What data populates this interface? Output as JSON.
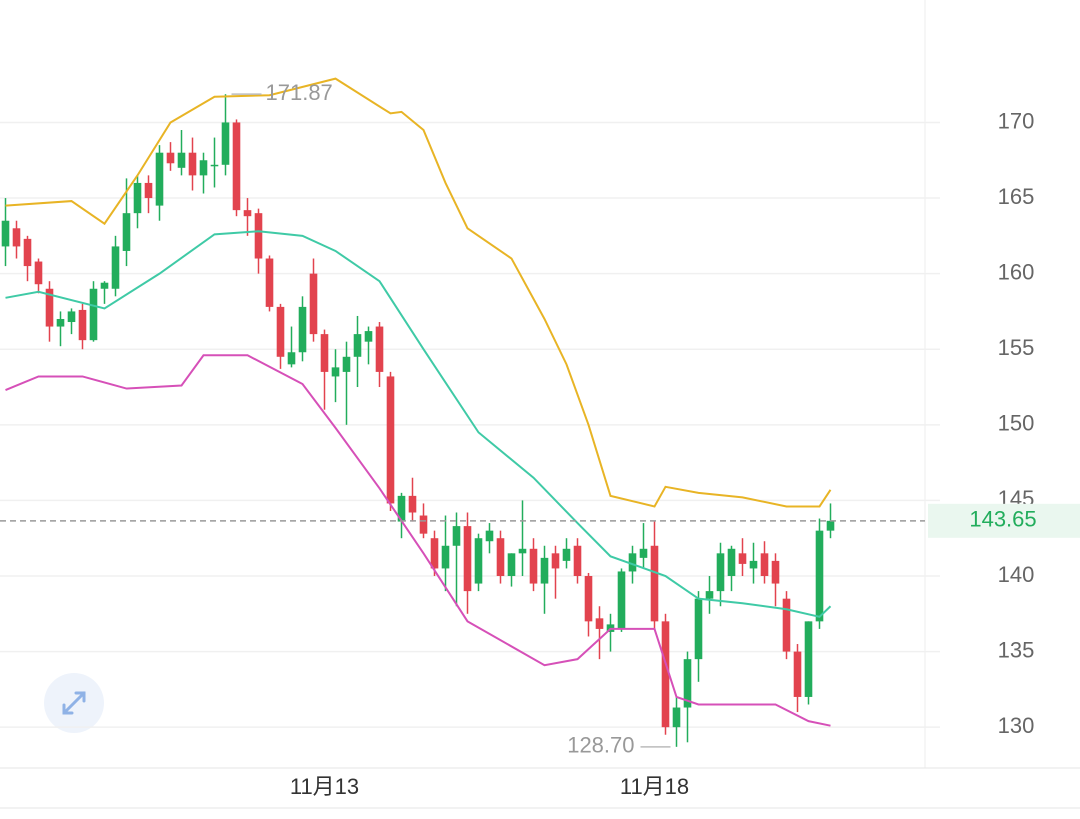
{
  "chart_data": {
    "type": "candlestick",
    "categories": [
      null,
      null,
      null,
      null,
      null,
      null,
      null,
      null,
      null,
      null,
      null,
      null,
      null,
      null,
      null,
      null,
      null,
      null,
      null,
      null,
      null,
      null,
      null,
      null,
      null,
      null,
      null,
      null,
      null,
      "11月13",
      null,
      null,
      null,
      null,
      null,
      null,
      null,
      null,
      null,
      null,
      null,
      null,
      null,
      null,
      null,
      null,
      null,
      null,
      null,
      null,
      null,
      null,
      null,
      null,
      null,
      null,
      null,
      null,
      null,
      "11月18",
      null,
      null,
      null,
      null,
      null,
      null,
      null,
      null,
      null,
      null,
      null,
      null,
      null,
      null,
      null,
      null
    ],
    "open": [
      161.8,
      163,
      162.3,
      160.8,
      159,
      156.5,
      156.8,
      157.6,
      155.6,
      159,
      159,
      161.5,
      164,
      166,
      164.5,
      168,
      167,
      168,
      166.5,
      167.1,
      167.2,
      170,
      164.2,
      164,
      161,
      157.8,
      154,
      154.8,
      160,
      156,
      153.2,
      153.5,
      154.5,
      155.5,
      156.5,
      153.2,
      143.6,
      145.3,
      144,
      142.5,
      140.5,
      142,
      143.3,
      139.5,
      142.3,
      142.5,
      140,
      141.5,
      141.8,
      139.5,
      141.5,
      141,
      142,
      140,
      137.2,
      136.3,
      136.5,
      140.3,
      141.2,
      142,
      137,
      130,
      131.3,
      134.5,
      138.5,
      139,
      140,
      141.5,
      140.5,
      141.5,
      141,
      138.5,
      135,
      132,
      137,
      143
    ],
    "high": [
      165,
      163.5,
      162.5,
      161,
      159.5,
      157.5,
      157.7,
      158,
      159.5,
      159.5,
      162.5,
      166.3,
      166.5,
      166.5,
      168.5,
      168.7,
      169.5,
      169,
      168,
      169,
      171.87,
      170.2,
      165,
      164.3,
      161.2,
      158,
      156.5,
      158.5,
      161,
      156.3,
      155,
      155.5,
      157.2,
      156.5,
      156.8,
      153.5,
      145.5,
      146.5,
      144.8,
      143,
      144,
      144.2,
      144.2,
      142.8,
      143.5,
      143,
      141.5,
      145,
      142.5,
      142,
      142,
      142.5,
      142.5,
      140.2,
      138,
      137.5,
      140.5,
      142,
      143.5,
      143.6,
      137.5,
      132,
      135,
      139,
      140,
      142.2,
      142,
      142.5,
      142.2,
      142.3,
      141.5,
      139,
      135.5,
      137,
      143.8,
      144.8
    ],
    "low": [
      160.5,
      161,
      159.5,
      158.7,
      155.5,
      155.2,
      156,
      155,
      155.5,
      158,
      158.5,
      160.5,
      163,
      164,
      163.5,
      166.8,
      166.5,
      165.5,
      165.3,
      165.7,
      166.5,
      163.8,
      162.5,
      160,
      157.5,
      153.7,
      153.8,
      154.2,
      155.5,
      151,
      151.5,
      150,
      152.5,
      154,
      152.5,
      144.3,
      142.5,
      143.6,
      142.5,
      140,
      139,
      138,
      137.5,
      139,
      141.5,
      139.5,
      139.3,
      140,
      139,
      137.5,
      138.5,
      140.5,
      139.5,
      136,
      134.5,
      135,
      136.3,
      139.5,
      140.5,
      136.5,
      129.5,
      128.7,
      129,
      133,
      137.5,
      138,
      139,
      140,
      139.5,
      139.5,
      138,
      134.5,
      131,
      131.5,
      136.5,
      142.5
    ],
    "close": [
      163.5,
      161.8,
      160.5,
      159.3,
      156.5,
      157,
      157.5,
      155.6,
      159,
      159.4,
      161.8,
      164,
      166,
      165,
      168,
      167.3,
      168,
      166.5,
      167.5,
      167.2,
      170,
      164.2,
      163.8,
      161,
      157.8,
      154.5,
      154.8,
      157.8,
      156,
      153.5,
      153.8,
      154.5,
      156,
      156.2,
      153.5,
      144.8,
      145.3,
      144.2,
      142.8,
      140.5,
      142,
      143.3,
      139,
      142.5,
      143,
      140,
      141.5,
      141.8,
      139.5,
      141.2,
      140.5,
      141.8,
      140,
      137,
      136.5,
      136.8,
      140.3,
      141.5,
      141.8,
      137,
      130,
      131.3,
      134.5,
      138.5,
      139,
      141.5,
      141.8,
      140.8,
      141,
      140,
      139.5,
      135,
      132,
      137,
      143,
      143.65
    ],
    "up_color": "#22ad5c",
    "down_color": "#e2434e",
    "bands": [
      {
        "color": "#e8b425",
        "x": [
          0,
          6,
          9,
          12,
          15,
          19,
          24,
          30,
          35,
          36,
          38,
          40,
          42,
          46,
          49,
          51,
          53,
          55,
          59,
          60,
          63,
          67,
          71,
          74,
          75
        ],
        "values": [
          164.5,
          164.8,
          163.3,
          166.5,
          170,
          171.7,
          171.8,
          172.9,
          170.6,
          170.7,
          169.5,
          166,
          163,
          161,
          157,
          154,
          150,
          145.3,
          144.6,
          145.9,
          145.5,
          145.2,
          144.6,
          144.6,
          145.7
        ]
      },
      {
        "color": "#3fcaa6",
        "x": [
          0,
          3,
          9,
          14,
          19,
          23,
          27,
          30,
          34,
          38,
          43,
          48,
          52,
          55,
          60,
          63,
          67,
          71,
          74,
          75
        ],
        "values": [
          158.4,
          158.8,
          157.7,
          160,
          162.6,
          162.8,
          162.5,
          161.5,
          159.5,
          155,
          149.5,
          146.5,
          143.5,
          141.3,
          140,
          138.5,
          138.2,
          137.8,
          137.3,
          138
        ]
      },
      {
        "color": "#d650b8",
        "x": [
          0,
          3,
          7,
          11,
          16,
          18,
          22,
          27,
          30,
          34,
          38,
          42,
          49,
          52,
          55,
          59,
          61,
          63,
          70,
          73,
          75
        ],
        "values": [
          152.3,
          153.2,
          153.2,
          152.4,
          152.6,
          154.6,
          154.6,
          152.7,
          149.8,
          145.8,
          141.5,
          137,
          134.1,
          134.5,
          136.5,
          136.5,
          132,
          131.5,
          131.5,
          130.4,
          130.1
        ]
      }
    ],
    "annotations": [
      {
        "x": 20,
        "value": 171.87,
        "label": "171.87"
      },
      {
        "x": 61,
        "value": 128.7,
        "label": "128.70"
      }
    ],
    "last_price": {
      "value": 143.65,
      "label": "143.65"
    },
    "ylim": [
      127.3,
      178.1
    ],
    "yticks": [
      130,
      135,
      140,
      145,
      150,
      155,
      160,
      165,
      170
    ],
    "grid": true
  }
}
